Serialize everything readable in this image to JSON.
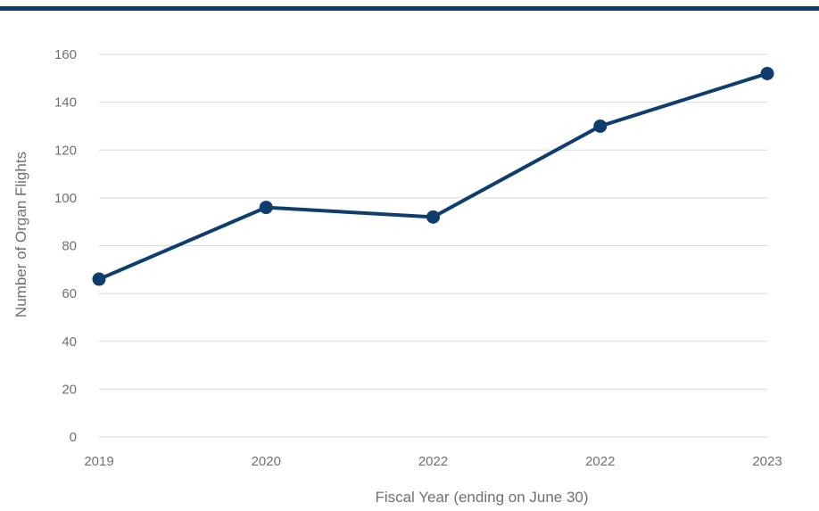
{
  "colors": {
    "accent": "#0f3e6e",
    "grid": "#d9d9d9",
    "text": "#707070"
  },
  "chart_data": {
    "type": "line",
    "title": "",
    "xlabel": "Fiscal Year (ending on June 30)",
    "ylabel": "Number of Organ Flights",
    "categories": [
      "2019",
      "2020",
      "2022",
      "2022",
      "2023"
    ],
    "series": [
      {
        "values": [
          66,
          96,
          92,
          130,
          152
        ]
      }
    ],
    "ylim": [
      0,
      160
    ],
    "yticks": [
      0,
      20,
      40,
      60,
      80,
      100,
      120,
      140,
      160
    ],
    "grid": true,
    "legend": "none"
  }
}
